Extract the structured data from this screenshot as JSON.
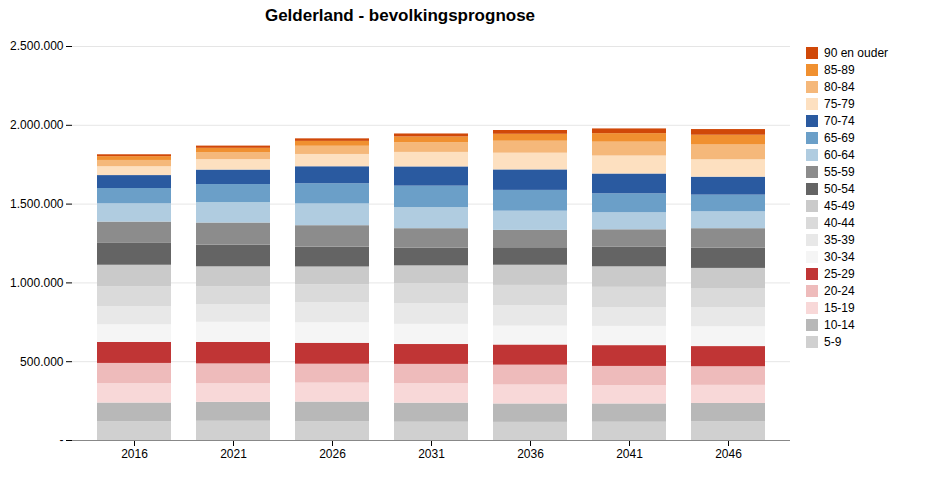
{
  "chart_data": {
    "type": "bar",
    "title": "Gelderland - bevolkingsprognose",
    "categories": [
      "2016",
      "2021",
      "2026",
      "2031",
      "2036",
      "2041",
      "2046"
    ],
    "series": [
      {
        "name": "5-9",
        "color": "#d0d0d0",
        "values": [
          118000,
          122000,
          120000,
          116000,
          115000,
          116000,
          118000
        ]
      },
      {
        "name": "10-14",
        "color": "#b8b8b8",
        "values": [
          120000,
          120000,
          124000,
          121000,
          117000,
          116000,
          117000
        ]
      },
      {
        "name": "15-19",
        "color": "#f8d8d8",
        "values": [
          123000,
          118000,
          120000,
          124000,
          120000,
          116000,
          115000
        ]
      },
      {
        "name": "20-24",
        "color": "#eebbbb",
        "values": [
          128000,
          126000,
          120000,
          122000,
          126000,
          122000,
          118000
        ]
      },
      {
        "name": "25-29",
        "color": "#c03535",
        "values": [
          133000,
          136000,
          133000,
          126000,
          128000,
          132000,
          128000
        ]
      },
      {
        "name": "30-34",
        "color": "#f5f5f5",
        "values": [
          113000,
          128000,
          130000,
          128000,
          120000,
          122000,
          126000
        ]
      },
      {
        "name": "35-39",
        "color": "#e8e8e8",
        "values": [
          113000,
          113000,
          128000,
          130000,
          128000,
          120000,
          122000
        ]
      },
      {
        "name": "40-44",
        "color": "#dadada",
        "values": [
          126000,
          113000,
          113000,
          128000,
          130000,
          128000,
          120000
        ]
      },
      {
        "name": "45-49",
        "color": "#cacaca",
        "values": [
          138000,
          126000,
          113000,
          113000,
          128000,
          130000,
          128000
        ]
      },
      {
        "name": "50-54",
        "color": "#646464",
        "values": [
          142000,
          138000,
          126000,
          112000,
          111000,
          126000,
          128000
        ]
      },
      {
        "name": "55-59",
        "color": "#8c8c8c",
        "values": [
          132000,
          140000,
          136000,
          124000,
          110000,
          109000,
          124000
        ]
      },
      {
        "name": "60-64",
        "color": "#b0cce0",
        "values": [
          116000,
          130000,
          138000,
          134000,
          122000,
          108000,
          107000
        ]
      },
      {
        "name": "65-69",
        "color": "#6b9fc8",
        "values": [
          97000,
          114000,
          128000,
          136000,
          132000,
          120000,
          106000
        ]
      },
      {
        "name": "70-74",
        "color": "#2a5aa0",
        "values": [
          82000,
          92000,
          108000,
          122000,
          130000,
          126000,
          114000
        ]
      },
      {
        "name": "75-79",
        "color": "#fde0c0",
        "values": [
          56000,
          66000,
          78000,
          92000,
          106000,
          114000,
          110000
        ]
      },
      {
        "name": "80-84",
        "color": "#f5b87a",
        "values": [
          40000,
          45000,
          52000,
          62000,
          76000,
          88000,
          94000
        ]
      },
      {
        "name": "85-89",
        "color": "#f09030",
        "values": [
          24000,
          27000,
          31000,
          36000,
          44000,
          54000,
          62000
        ]
      },
      {
        "name": "90 en ouder",
        "color": "#d04808",
        "values": [
          12000,
          14000,
          16000,
          19000,
          24000,
          30000,
          36000
        ]
      }
    ],
    "stacked": true,
    "ylim": [
      0,
      2500000
    ],
    "yticks": [
      {
        "value": 0,
        "label": "-"
      },
      {
        "value": 500000,
        "label": "500.000"
      },
      {
        "value": 1000000,
        "label": "1.000.000"
      },
      {
        "value": 1500000,
        "label": "1.500.000"
      },
      {
        "value": 2000000,
        "label": "2.000.000"
      },
      {
        "value": 2500000,
        "label": "2.500.000"
      }
    ],
    "grid": true,
    "legend": "right"
  }
}
